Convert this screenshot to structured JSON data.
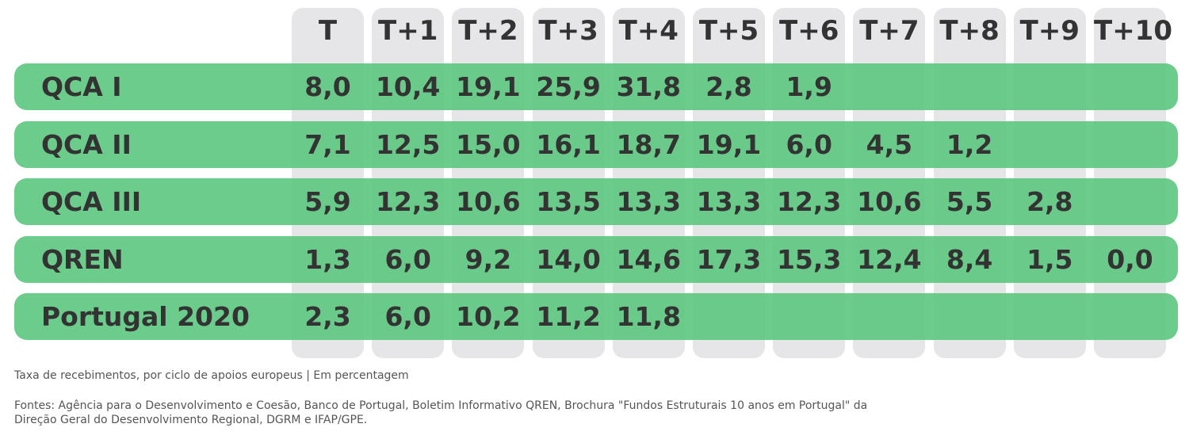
{
  "chart_data": {
    "type": "table",
    "columns": [
      "T",
      "T+1",
      "T+2",
      "T+3",
      "T+4",
      "T+5",
      "T+6",
      "T+7",
      "T+8",
      "T+9",
      "T+10"
    ],
    "rows": [
      {
        "name": "QCA I",
        "values": [
          "8,0",
          "10,4",
          "19,1",
          "25,9",
          "31,8",
          "2,8",
          "1,9",
          "",
          "",
          "",
          ""
        ]
      },
      {
        "name": "QCA II",
        "values": [
          "7,1",
          "12,5",
          "15,0",
          "16,1",
          "18,7",
          "19,1",
          "6,0",
          "4,5",
          "1,2",
          "",
          ""
        ]
      },
      {
        "name": "QCA III",
        "values": [
          "5,9",
          "12,3",
          "10,6",
          "13,5",
          "13,3",
          "13,3",
          "12,3",
          "10,6",
          "5,5",
          "2,8",
          ""
        ]
      },
      {
        "name": "QREN",
        "values": [
          "1,3",
          "6,0",
          "9,2",
          "14,0",
          "14,6",
          "17,3",
          "15,3",
          "12,4",
          "8,4",
          "1,5",
          "0,0"
        ]
      },
      {
        "name": "Portugal 2020",
        "values": [
          "2,3",
          "6,0",
          "10,2",
          "11,2",
          "11,8",
          "",
          "",
          "",
          "",
          "",
          ""
        ]
      }
    ],
    "subtitle": "Taxa de recebimentos, por ciclo de apoios europeus | Em percentagem",
    "source": "Fontes: Agência para o Desenvolvimento e Coesão, Banco de Portugal, Boletim Informativo QREN, Brochura \"Fundos Estruturais 10 anos em Portugal\" da Direção Geral do Desenvolvimento Regional,  DGRM e IFAP/GPE."
  },
  "colors": {
    "row_bar": "#5cc67e",
    "column_bg": "#e6e6e8",
    "text": "#333333",
    "note_text": "#555555"
  }
}
